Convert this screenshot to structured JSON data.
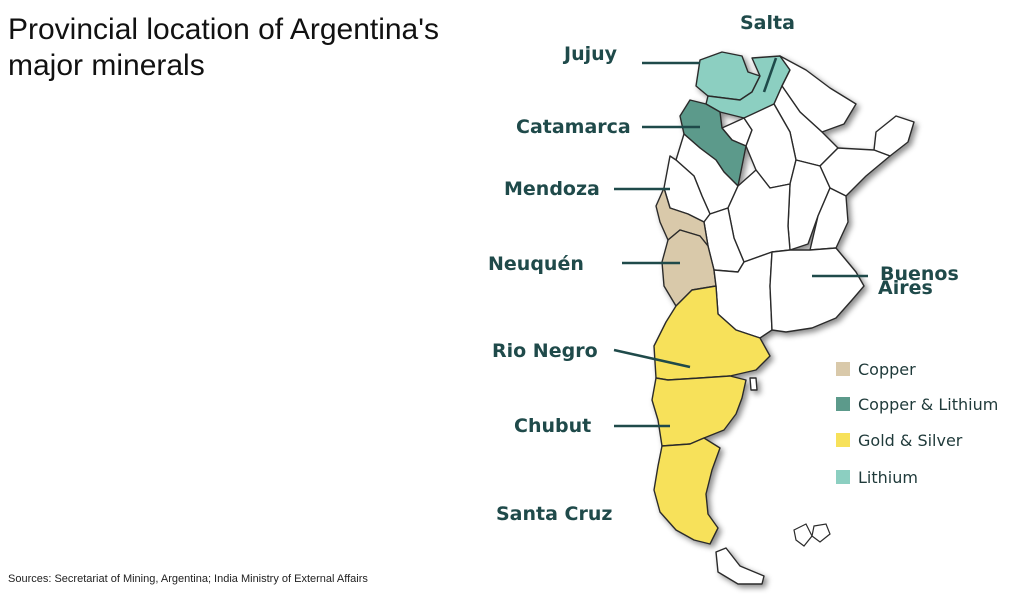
{
  "title": "Provincial location of Argentina's major minerals",
  "source": "Sources: Secretariat of Mining, Argentina; India Ministry of External Affairs",
  "colors": {
    "copper": "#d9c9aa",
    "copper_lithium": "#5c9a8b",
    "gold_silver": "#f7e15a",
    "lithium": "#8ccfc1",
    "label": "#1f4a4a"
  },
  "legend": [
    {
      "label": "Copper",
      "color": "#d9c9aa"
    },
    {
      "label": "Copper & Lithium",
      "color": "#5c9a8b"
    },
    {
      "label": "Gold & Silver",
      "color": "#f7e15a"
    },
    {
      "label": "Lithium",
      "color": "#8ccfc1"
    }
  ],
  "provinces": {
    "salta": {
      "label": "Salta",
      "mineral": "Lithium"
    },
    "jujuy": {
      "label": "Jujuy",
      "mineral": "Lithium"
    },
    "catamarca": {
      "label": "Catamarca",
      "mineral": "Copper & Lithium"
    },
    "mendoza": {
      "label": "Mendoza",
      "mineral": "Copper"
    },
    "neuquen": {
      "label": "Neuquén",
      "mineral": "Copper"
    },
    "buenos_aires": {
      "label_line1": "Buenos",
      "label_line2": "Aires"
    },
    "rio_negro": {
      "label": "Rio Negro",
      "mineral": "Gold & Silver"
    },
    "chubut": {
      "label": "Chubut",
      "mineral": "Gold & Silver"
    },
    "santa_cruz": {
      "label": "Santa Cruz",
      "mineral": "Gold & Silver"
    }
  }
}
